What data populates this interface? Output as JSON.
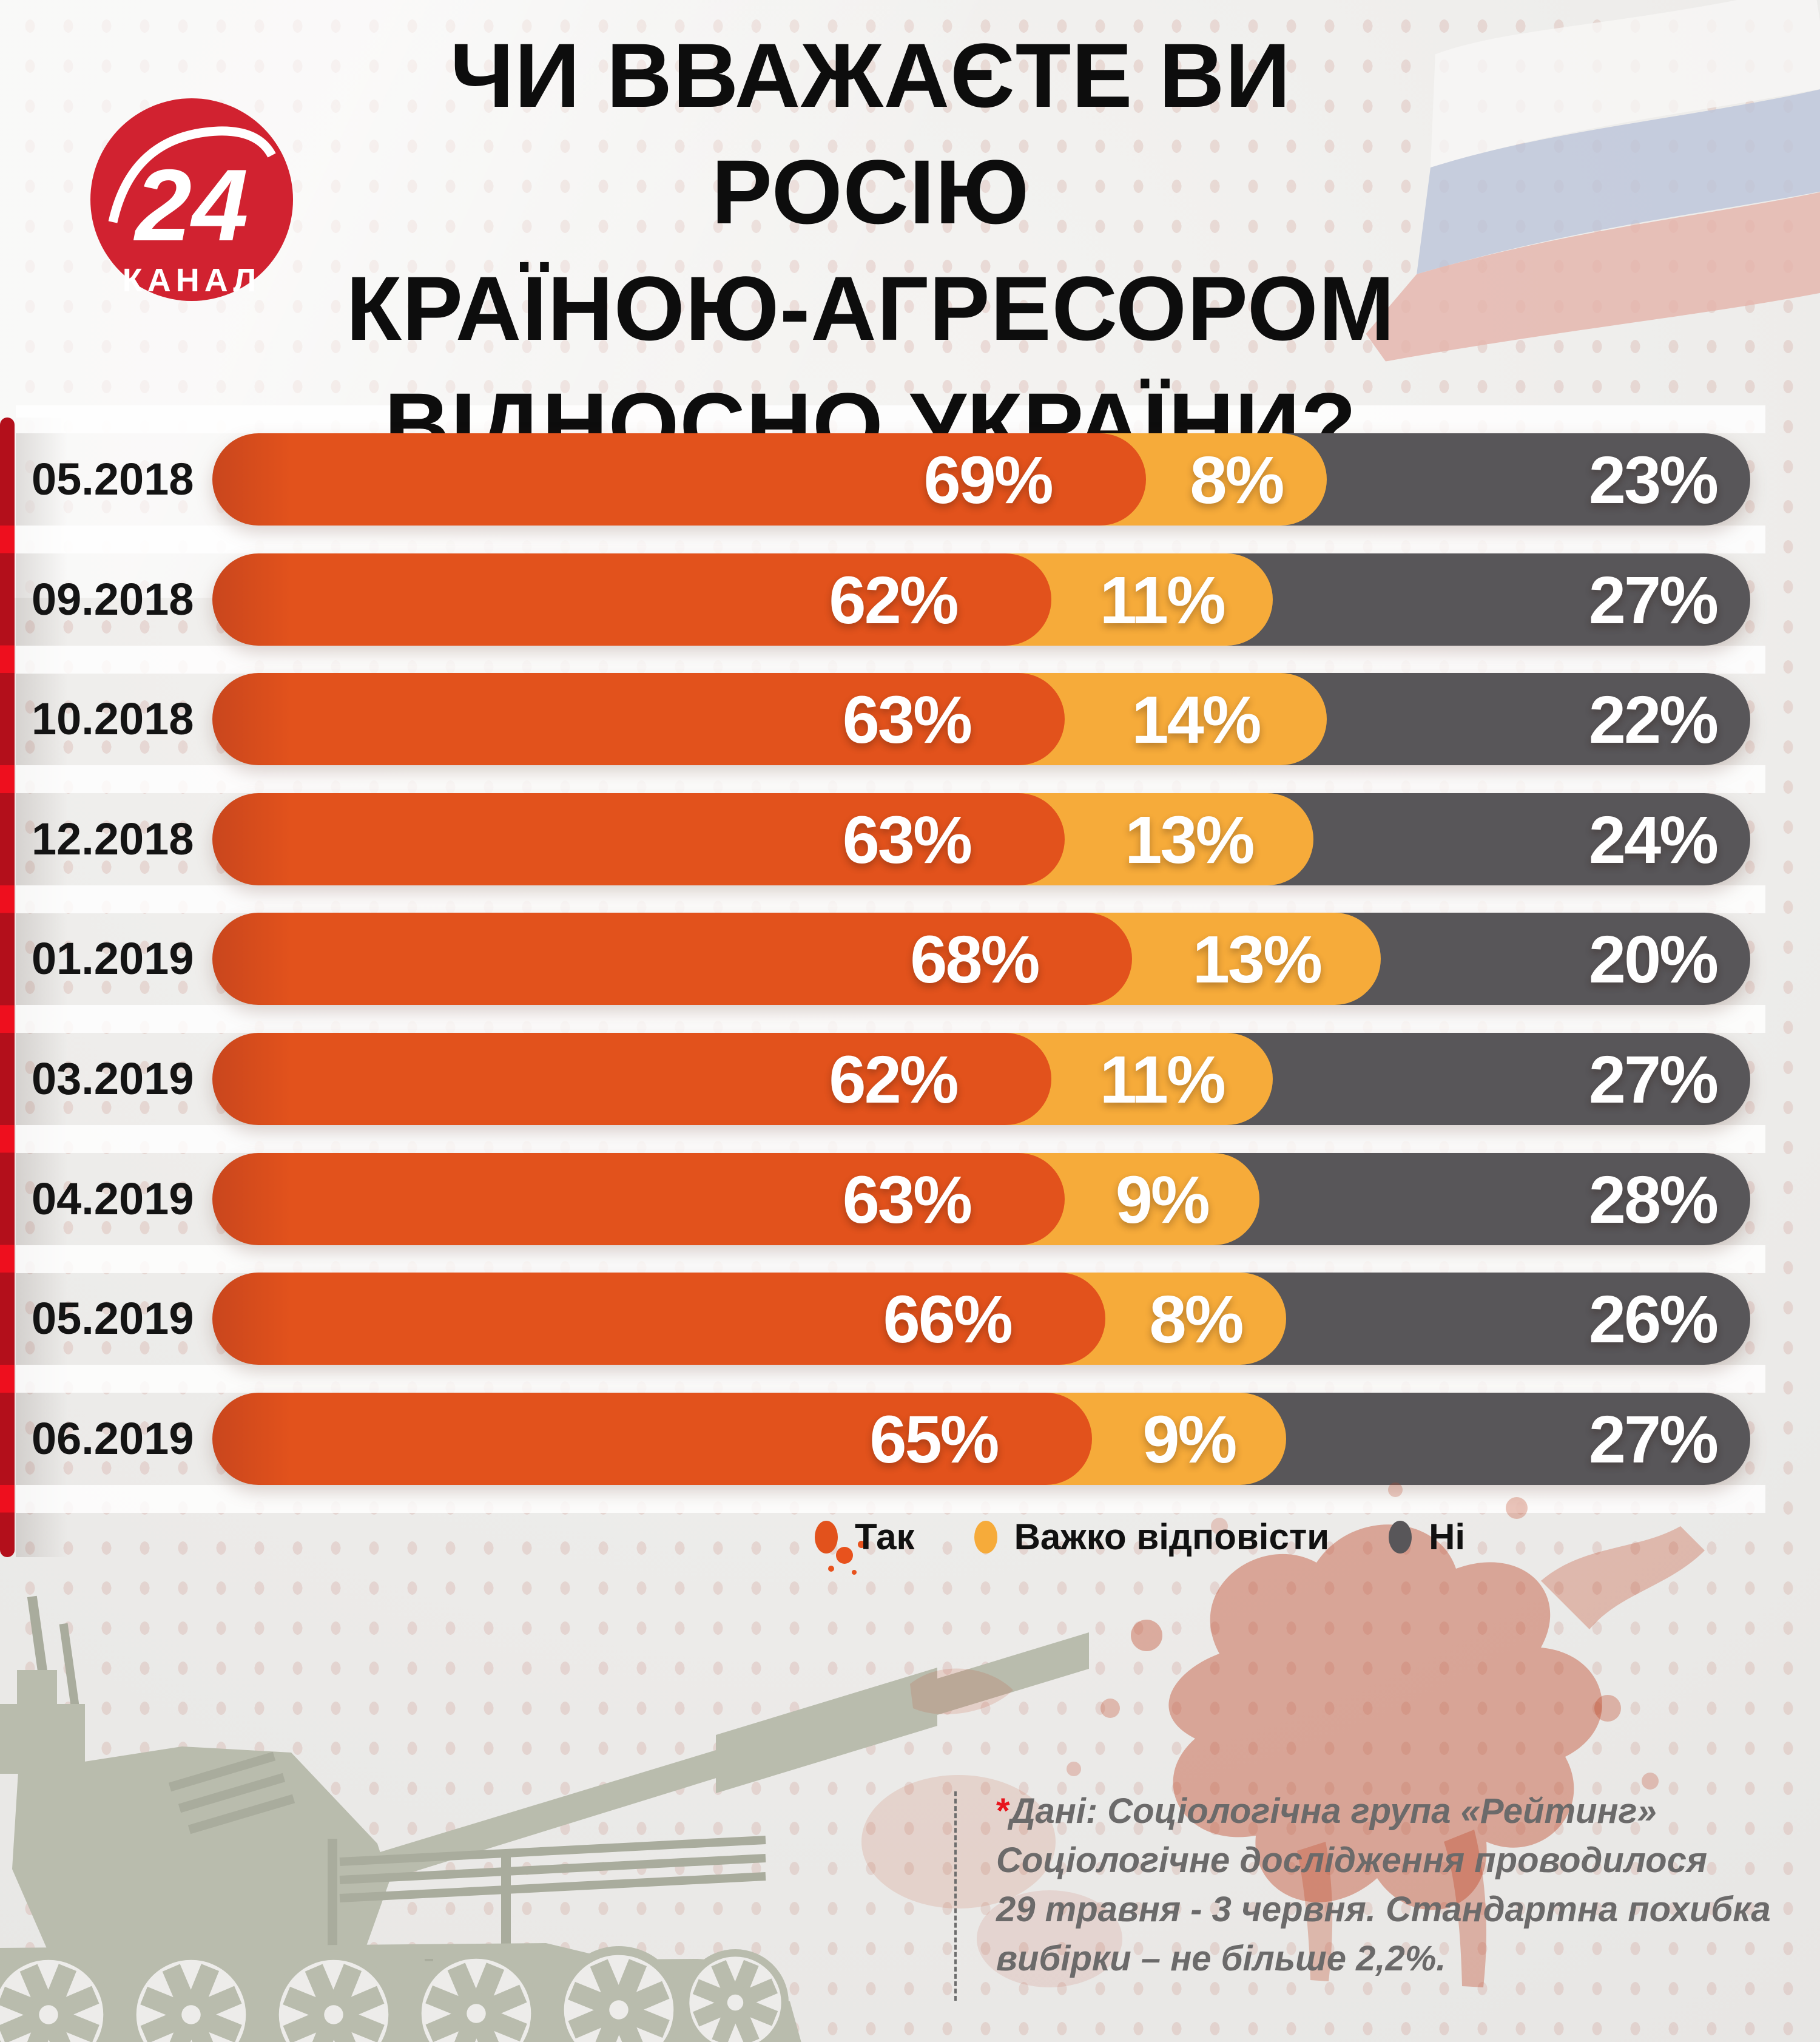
{
  "brand": {
    "logo_number": "24",
    "logo_text": "КАНАЛ",
    "logo_color": "#d12230"
  },
  "title": {
    "lines": [
      "ЧИ ВВАЖАЄТЕ ВИ РОСІЮ",
      "КРАЇНОЮ-АГРЕСОРОМ",
      "ВІДНОСНО УКРАЇНИ?"
    ]
  },
  "chart_data": {
    "type": "bar",
    "stacked": true,
    "orientation": "horizontal",
    "title": "ЧИ ВВАЖАЄТЕ ВИ РОСІЮ КРАЇНОЮ-АГРЕСОРОМ ВІДНОСНО УКРАЇНИ?",
    "unit": "%",
    "xlim": [
      0,
      100
    ],
    "grid": false,
    "legend_position": "bottom",
    "value_labels": "inside-end",
    "categories": [
      "05.2018",
      "09.2018",
      "10.2018",
      "12.2018",
      "01.2019",
      "03.2019",
      "04.2019",
      "05.2019",
      "06.2019"
    ],
    "series": [
      {
        "name": "Так",
        "color": "#e2521c",
        "values": [
          69,
          62,
          63,
          63,
          68,
          62,
          63,
          66,
          65
        ]
      },
      {
        "name": "Важко відповісти",
        "color": "#f6ab3a",
        "values": [
          8,
          11,
          14,
          13,
          13,
          11,
          9,
          8,
          9
        ]
      },
      {
        "name": "Ні",
        "color": "#585659",
        "values": [
          23,
          27,
          22,
          24,
          20,
          27,
          28,
          26,
          27
        ]
      }
    ]
  },
  "legend": {
    "items": [
      {
        "label": "Так",
        "color": "#e2521c"
      },
      {
        "label": "Важко відповісти",
        "color": "#f6ab3a"
      },
      {
        "label": "Ні",
        "color": "#585659"
      }
    ]
  },
  "footnote": {
    "star": "*",
    "lines": [
      "Дані:  Соціологічна група «Рейтинг»",
      "Соціологічне дослідження проводилося",
      "29 травня - 3 червня. Стандартна похибка",
      "вибірки – не більше 2,2%."
    ]
  },
  "colors": {
    "background": "#edecea",
    "accent_red_strip_dark": "#b30f1b",
    "accent_red_strip_bright": "#ee0f1e",
    "title_text": "#0d0d0d",
    "footnote_text": "#6b6a6a",
    "tank": "#b9bcad",
    "flag": [
      "#f8f7f6",
      "#bcc5da",
      "#e5b4ab"
    ],
    "splatter": "#bf4526"
  }
}
